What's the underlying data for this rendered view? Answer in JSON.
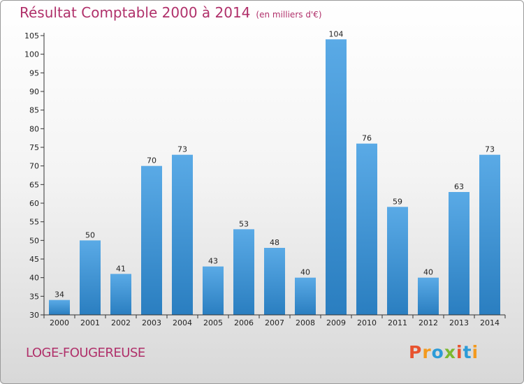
{
  "header": {
    "title": "Résultat Comptable 2000 à 2014",
    "unit": "(en milliers d'€)"
  },
  "footer": {
    "commune": "LOGE-FOUGEREUSE",
    "logo": "Proxiti"
  },
  "colors": {
    "title": "#b0306a",
    "bar_light": "#5aaae6",
    "bar_dark": "#2a7ec0",
    "logo_letters": [
      "#e8532f",
      "#f39a1f",
      "#2d9bd7",
      "#7cb82f",
      "#e8532f",
      "#2d9bd7",
      "#f39a1f"
    ]
  },
  "chart_data": {
    "type": "bar",
    "title": "Résultat Comptable 2000 à 2014",
    "xlabel": "",
    "ylabel": "",
    "categories": [
      "2000",
      "2001",
      "2002",
      "2003",
      "2004",
      "2005",
      "2006",
      "2007",
      "2008",
      "2009",
      "2010",
      "2011",
      "2012",
      "2013",
      "2014"
    ],
    "values": [
      34,
      50,
      41,
      70,
      73,
      43,
      53,
      48,
      40,
      104,
      76,
      59,
      40,
      63,
      73
    ],
    "ylim": [
      30,
      105
    ],
    "yticks": [
      30,
      35,
      40,
      45,
      50,
      55,
      60,
      65,
      70,
      75,
      80,
      85,
      90,
      95,
      100,
      105
    ],
    "grid": false
  }
}
